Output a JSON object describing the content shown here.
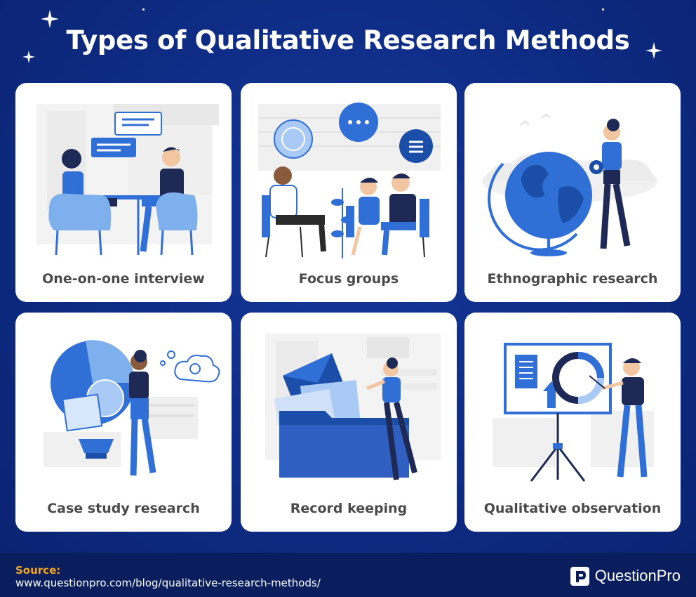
{
  "title": "Types of Qualitative Research Methods",
  "cards": [
    {
      "label": "One-on-one interview",
      "icon": "interview-illustration"
    },
    {
      "label": "Focus groups",
      "icon": "focus-group-illustration"
    },
    {
      "label": "Ethnographic research",
      "icon": "globe-illustration"
    },
    {
      "label": "Case study research",
      "icon": "lightbulb-illustration"
    },
    {
      "label": "Record keeping",
      "icon": "folder-illustration"
    },
    {
      "label": "Qualitative observation",
      "icon": "presentation-board-illustration"
    }
  ],
  "footer": {
    "source_label": "Source:",
    "source_url": "www.questionpro.com/blog/qualitative-research-methods/",
    "brand_name": "QuestionPro"
  },
  "colors": {
    "background": "#0d2a80",
    "footer": "#0a1e5e",
    "accent_blue": "#2f6fd6",
    "source_label": "#f5a623",
    "label_text": "#4a4a4a"
  }
}
